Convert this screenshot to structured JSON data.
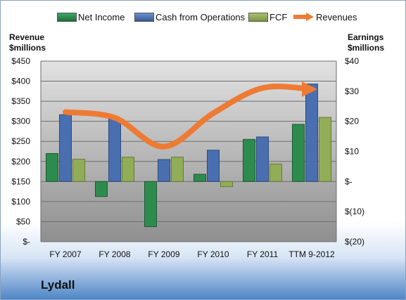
{
  "company": "Lydall",
  "chart_data": {
    "type": "bar",
    "categories": [
      "FY 2007",
      "FY 2008",
      "FY 2009",
      "FY 2010",
      "FY 2011",
      "TTM 9-2012"
    ],
    "left_axis": {
      "title_line1": "Revenue",
      "title_line2": "$millions",
      "ticks": [
        0,
        50,
        100,
        150,
        200,
        250,
        300,
        350,
        400,
        450
      ],
      "tick_labels": [
        "$-",
        "$50",
        "$100",
        "$150",
        "$200",
        "$250",
        "$300",
        "$350",
        "$400",
        "$450"
      ],
      "ylim": [
        0,
        450
      ]
    },
    "right_axis": {
      "title_line1": "Earnings",
      "title_line2": "$millions",
      "ticks": [
        -20,
        -10,
        0,
        10,
        20,
        30,
        40
      ],
      "tick_labels": [
        "$(20)",
        "$(10)",
        "$-",
        "$10",
        "$20",
        "$30",
        "$40"
      ],
      "ylim": [
        -20,
        40
      ]
    },
    "series": [
      {
        "name": "Net Income",
        "axis": "right",
        "kind": "bar",
        "color": "#2e8b4e",
        "values": [
          9.3,
          -5,
          -15,
          2.4,
          14,
          19
        ]
      },
      {
        "name": "Cash from Operations",
        "axis": "right",
        "kind": "bar",
        "color": "#4a6fb0",
        "values": [
          22.2,
          20.7,
          7.3,
          10.4,
          14.8,
          32.4
        ]
      },
      {
        "name": "FCF",
        "axis": "right",
        "kind": "bar",
        "color": "#92ad57",
        "values": [
          7.4,
          8.1,
          8.1,
          -1.7,
          5.8,
          21.3
        ]
      },
      {
        "name": "Revenues",
        "axis": "left",
        "kind": "line",
        "color": "#ee7b33",
        "values": [
          323,
          309,
          237,
          320,
          383,
          380
        ]
      }
    ],
    "grid": true,
    "legend": "top"
  }
}
